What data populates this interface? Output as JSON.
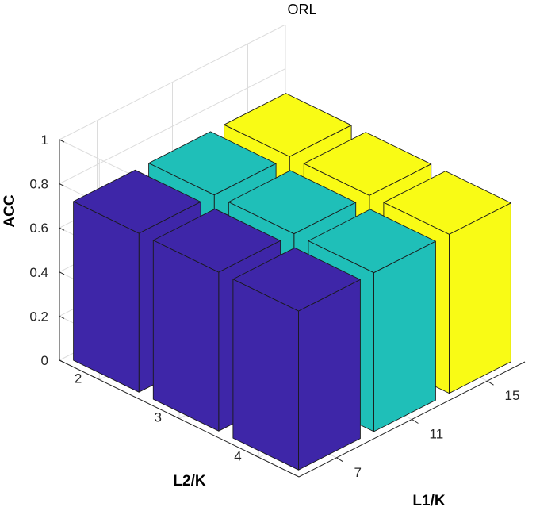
{
  "chart_data": {
    "type": "bar3d",
    "title": "ORL",
    "zlabel": "ACC",
    "xlabel": "L1/K",
    "ylabel": "L2/K",
    "x_categories": [
      "7",
      "11",
      "15"
    ],
    "y_categories": [
      "2",
      "3",
      "4"
    ],
    "zlim": [
      0,
      1
    ],
    "z_ticks": [
      "0",
      "0.2",
      "0.4",
      "0.6",
      "0.8",
      "1"
    ],
    "grid": true,
    "series": [
      {
        "x": "7",
        "color": "#3e26a8",
        "values": [
          0.72,
          0.72,
          0.72
        ]
      },
      {
        "x": "11",
        "color": "#1fbfb8",
        "values": [
          0.72,
          0.72,
          0.72
        ]
      },
      {
        "x": "15",
        "color": "#f9fb15",
        "values": [
          0.72,
          0.72,
          0.72
        ]
      }
    ]
  }
}
